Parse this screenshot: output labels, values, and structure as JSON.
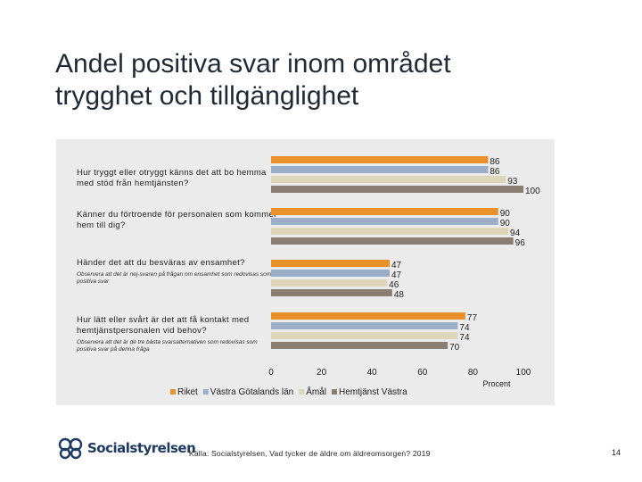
{
  "slide": {
    "title_line1": "Andel positiva svar inom området",
    "title_line2": "trygghet och tillgänglighet",
    "source": "Källa: Socialstyrelsen, Vad tycker de äldre om äldreomsorgen? 2019",
    "page_number": "14",
    "logo_text": "Socialstyrelsen"
  },
  "questions": [
    {
      "text": "Hur tryggt eller otryggt känns det att bo hemma med stöd från hemtjänsten?",
      "note": ""
    },
    {
      "text": "Känner du förtroende för personalen som kommer hem till dig?",
      "note": ""
    },
    {
      "text": "Händer det att du besväras av ensamhet?",
      "note": "Observera att det är nej-svaren på frågan om ensamhet som redovisas som positiva svar"
    },
    {
      "text": "Hur lätt eller svårt är det att få kontakt med hemtjänstpersonalen vid behov?",
      "note": "Observera att det är de tre bästa svarsalternativen som redovisas som positiva svar på denna fråga"
    }
  ],
  "chart_data": {
    "type": "bar",
    "orientation": "horizontal",
    "categories": [
      "Hur tryggt eller otryggt känns det att bo hemma med stöd från hemtjänsten?",
      "Känner du förtroende för personalen som kommer hem till dig?",
      "Händer det att du besväras av ensamhet?",
      "Hur lätt eller svårt är det att få kontakt med hemtjänstpersonalen vid behov?"
    ],
    "series": [
      {
        "name": "Riket",
        "color": "#e8902a",
        "values": [
          86,
          90,
          47,
          77
        ]
      },
      {
        "name": "Västra Götalands län",
        "color": "#9aaec7",
        "values": [
          86,
          90,
          47,
          74
        ]
      },
      {
        "name": "Åmål",
        "color": "#ddd6b8",
        "values": [
          93,
          94,
          46,
          74
        ]
      },
      {
        "name": "Hemtjänst Västra",
        "color": "#8a7d72",
        "values": [
          100,
          96,
          48,
          70
        ]
      }
    ],
    "xlim": [
      0,
      100
    ],
    "xticks": [
      "0",
      "20",
      "40",
      "60",
      "80",
      "100"
    ],
    "xlabel": "Procent",
    "legend_position": "bottom"
  }
}
